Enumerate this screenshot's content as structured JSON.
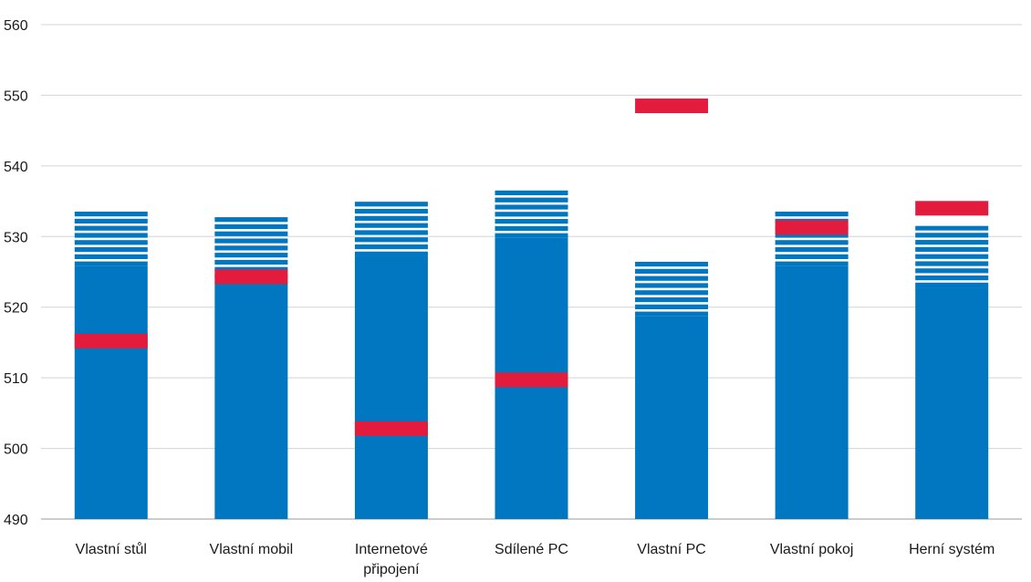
{
  "chart_data": {
    "type": "bar",
    "title": "",
    "xlabel": "",
    "ylabel": "",
    "ylim": [
      490,
      560
    ],
    "yticks": [
      490,
      500,
      510,
      520,
      530,
      540,
      550,
      560
    ],
    "grid": "horizontal",
    "categories": [
      [
        "Vlastní stůl"
      ],
      [
        "Vlastní mobil"
      ],
      [
        "Internetové",
        "připojení"
      ],
      [
        "Sdílené PC"
      ],
      [
        "Vlastní PC"
      ],
      [
        "Vlastní pokoj"
      ],
      [
        "Herní systém"
      ]
    ],
    "series": [
      {
        "values": [
          525.8,
          523.0,
          527.2,
          529.8,
          518.7,
          525.8,
          522.8
        ],
        "style": "solid",
        "color": "#0077c0"
      },
      {
        "values": [
          534.2,
          533.5,
          535.0,
          537.2,
          527.3,
          534.3,
          531.5
        ],
        "style": "striped",
        "color": "#0077c0"
      },
      {
        "values": [
          515.2,
          524.3,
          502.8,
          509.7,
          548.5,
          531.3,
          534.0
        ],
        "style": "marker",
        "color": "#e31c3d"
      }
    ]
  }
}
